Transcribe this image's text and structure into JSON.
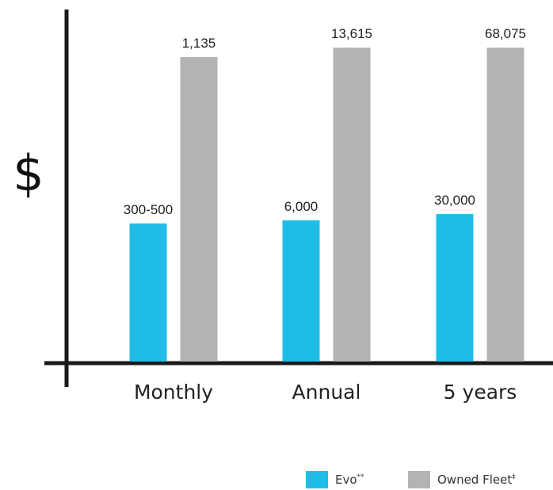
{
  "chart_data": {
    "type": "bar",
    "y_axis_symbol": "$",
    "categories": [
      "Monthly",
      "Annual",
      "5 years"
    ],
    "series": [
      {
        "name": "Evo",
        "name_mark": "**",
        "color": "#1fbde6",
        "values": [
          500,
          6000,
          30000
        ],
        "value_labels": [
          "300-500",
          "6,000",
          "30,000"
        ]
      },
      {
        "name": "Owned Fleet",
        "name_mark": "‡",
        "color": "#b3b3b3",
        "values": [
          1135,
          13615,
          68075
        ],
        "value_labels": [
          "1,135",
          "13,615",
          "68,075"
        ]
      }
    ],
    "scale": "each category group is scaled independently (not to a common axis)",
    "relative_heights": [
      [
        0.44,
        0.97
      ],
      [
        0.45,
        1.0
      ],
      [
        0.47,
        1.0
      ]
    ],
    "legend_position": "bottom-right",
    "grid": false
  }
}
